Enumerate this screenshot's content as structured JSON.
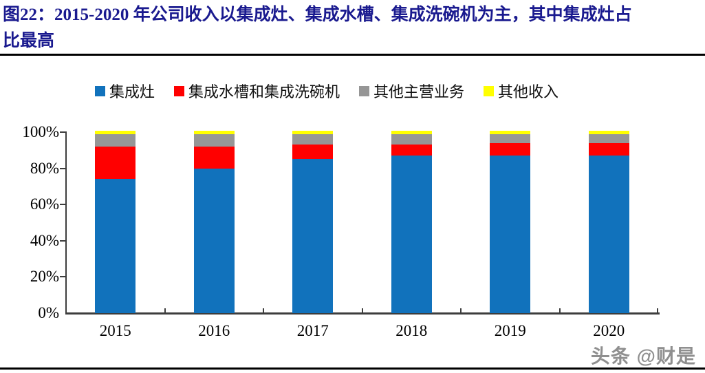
{
  "page": {
    "title_line1": "图22：2015-2020 年公司收入以集成灶、集成水槽、集成洗碗机为主，其中集成灶占",
    "title_line2": "比最高",
    "watermark": "头条 @财是"
  },
  "colors": {
    "title": "#1a1a8f",
    "axis": "#3d3d3d",
    "series_blue": "#1172bc",
    "series_red": "#ff0000",
    "series_gray": "#969696",
    "series_yellow": "#ffff00"
  },
  "chart_data": {
    "type": "bar",
    "stacked": true,
    "unit": "%",
    "title": "",
    "xlabel": "",
    "ylabel": "",
    "ylim": [
      0,
      100
    ],
    "grid": false,
    "legend_position": "top",
    "categories": [
      "2015",
      "2016",
      "2017",
      "2018",
      "2019",
      "2020"
    ],
    "series": [
      {
        "name": "集成灶",
        "color": "#1172bc",
        "values": [
          74,
          80,
          85,
          87,
          87,
          87
        ]
      },
      {
        "name": "集成水槽和集成洗碗机",
        "color": "#ff0000",
        "values": [
          18,
          12,
          8,
          6,
          7,
          7
        ]
      },
      {
        "name": "其他主营业务",
        "color": "#969696",
        "values": [
          7,
          7,
          6,
          6,
          5,
          5
        ]
      },
      {
        "name": "其他收入",
        "color": "#ffff00",
        "values": [
          1,
          1,
          1,
          1,
          1,
          1
        ]
      }
    ],
    "y_tick_labels": [
      "100%",
      "80%",
      "60%",
      "40%",
      "20%",
      "0%"
    ]
  }
}
